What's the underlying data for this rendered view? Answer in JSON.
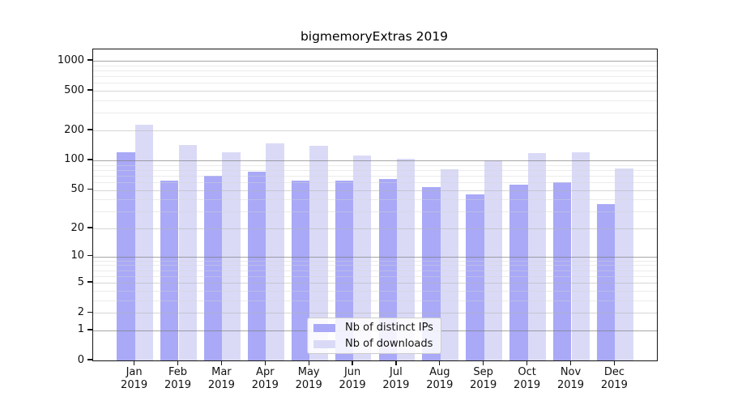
{
  "chart_data": {
    "type": "bar",
    "title": "bigmemoryExtras 2019",
    "categories": [
      "Jan",
      "Feb",
      "Mar",
      "Apr",
      "May",
      "Jun",
      "Jul",
      "Aug",
      "Sep",
      "Oct",
      "Nov",
      "Dec"
    ],
    "category_year": "2019",
    "series": [
      {
        "name": "Nb of distinct IPs",
        "color": "#a9a9f7",
        "values": [
          120,
          62,
          70,
          77,
          62,
          62,
          65,
          53,
          45,
          57,
          60,
          36
        ]
      },
      {
        "name": "Nb of downloads",
        "color": "#dadaf7",
        "values": [
          230,
          143,
          120,
          147,
          141,
          112,
          103,
          81,
          100,
          119,
          121,
          82
        ]
      }
    ],
    "y_ticks": [
      0,
      1,
      2,
      5,
      10,
      20,
      50,
      100,
      200,
      500,
      1000
    ],
    "y_scale": "log10(value+1)",
    "ylim": [
      0,
      1325
    ],
    "grid": true,
    "legend_position": "inside-bottom-center"
  }
}
